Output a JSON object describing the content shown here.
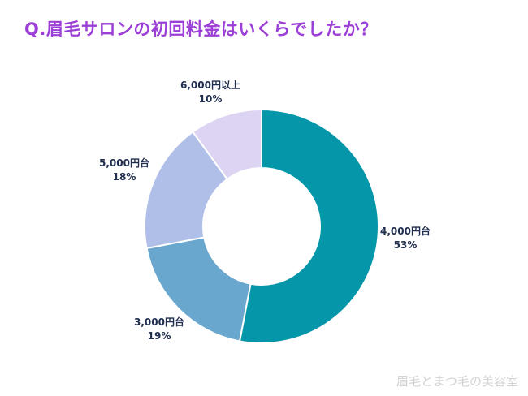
{
  "chart_data": {
    "type": "pie",
    "title": "Q.眉毛サロンの初回料金はいくらでしたか？",
    "donut": true,
    "slices": [
      {
        "label": "4,000円台",
        "value": 53,
        "pct_label": "53%",
        "color": "#0596aa"
      },
      {
        "label": "3,000円台",
        "value": 19,
        "pct_label": "19%",
        "color": "#6aa7cf"
      },
      {
        "label": "5,000円台",
        "value": 18,
        "pct_label": "18%",
        "color": "#b0bfe8"
      },
      {
        "label": "6,000円以上",
        "value": 10,
        "pct_label": "10%",
        "color": "#ddd3f3"
      }
    ],
    "legend": "none",
    "start_angle_deg": 0,
    "direction": "clockwise"
  },
  "watermark": "眉毛とまつ毛の美容室"
}
